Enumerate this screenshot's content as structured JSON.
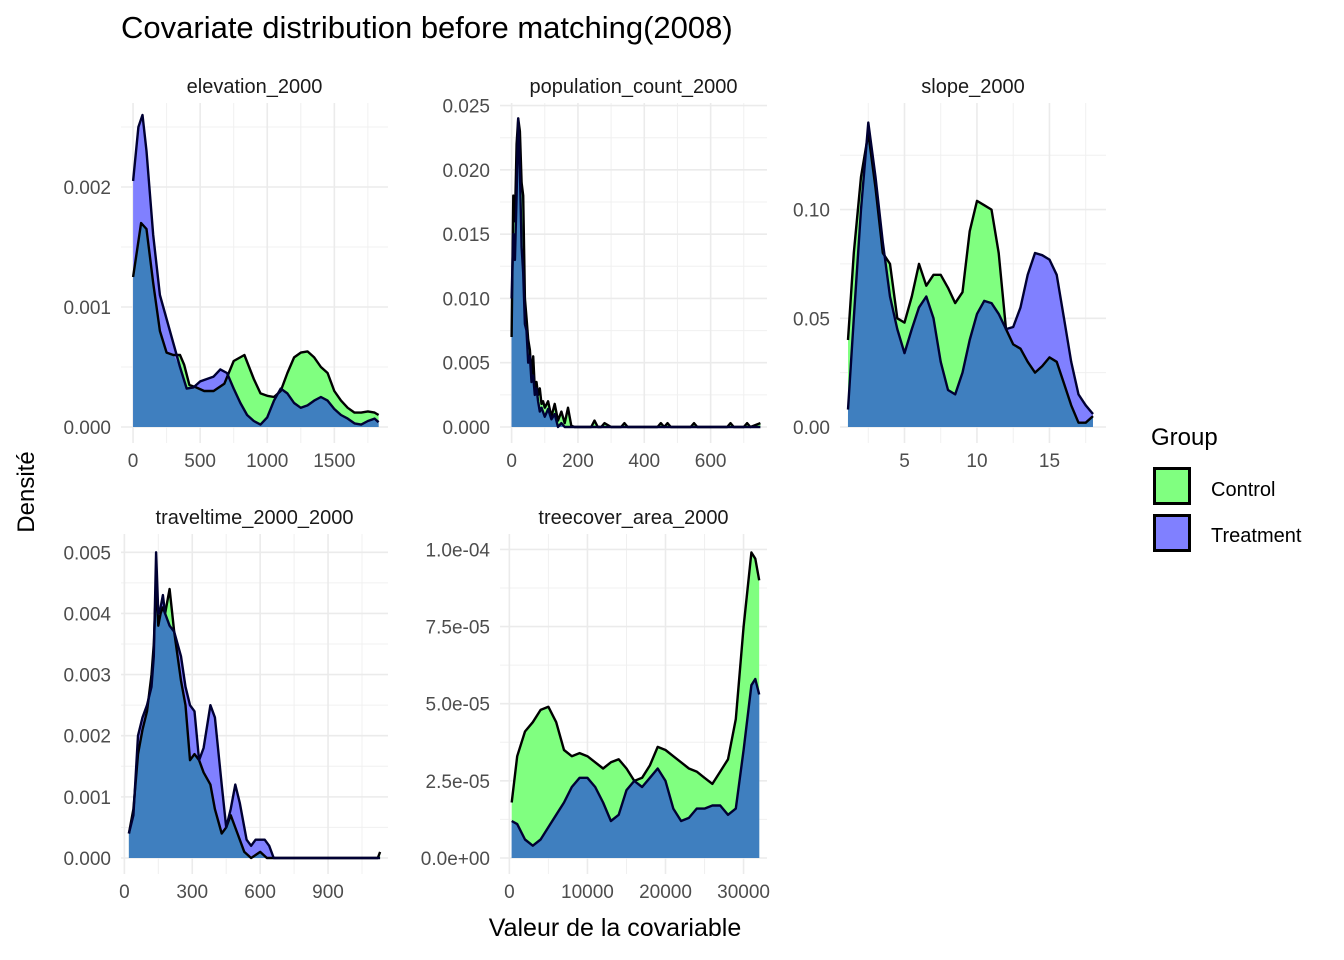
{
  "chart_data": {
    "type": "area",
    "title": "Covariate distribution before matching(2008)",
    "xlabel": "Valeur de la covariable",
    "ylabel": "Densité",
    "legend": {
      "title": "Group",
      "position": "right",
      "entries": [
        {
          "name": "Control",
          "color": "#80ff80"
        },
        {
          "name": "Treatment",
          "color": "#8080ff"
        }
      ]
    },
    "overlap_color": "#3f7fbf",
    "grid": true,
    "panels": [
      {
        "name": "elevation_2000",
        "xlim": [
          -90,
          1900
        ],
        "ylim": [
          0,
          0.0027
        ],
        "xticks": [
          0,
          500,
          1000,
          1500
        ],
        "xtick_labels": [
          "0",
          "500",
          "1000",
          "1500"
        ],
        "yticks": [
          0,
          0.001,
          0.002
        ],
        "ytick_labels": [
          "0.000",
          "0.001",
          "0.002"
        ],
        "series": [
          {
            "name": "Control",
            "x": [
              0,
              60,
              100,
              150,
              200,
              250,
              300,
              350,
              380,
              420,
              470,
              530,
              600,
              680,
              750,
              830,
              900,
              950,
              1000,
              1050,
              1100,
              1150,
              1200,
              1250,
              1300,
              1350,
              1400,
              1450,
              1500,
              1550,
              1600,
              1650,
              1700,
              1750,
              1800,
              1830
            ],
            "y": [
              0.00125,
              0.0017,
              0.00165,
              0.0012,
              0.0008,
              0.00062,
              0.0006,
              0.0006,
              0.00052,
              0.00035,
              0.00033,
              0.0003,
              0.0003,
              0.00036,
              0.00055,
              0.0006,
              0.0004,
              0.00028,
              0.00026,
              0.00025,
              0.0003,
              0.00045,
              0.00058,
              0.00062,
              0.00063,
              0.00058,
              0.0005,
              0.00045,
              0.0003,
              0.00022,
              0.00016,
              0.00012,
              0.00012,
              0.00013,
              0.00012,
              0.0001
            ]
          },
          {
            "name": "Treatment",
            "x": [
              0,
              40,
              70,
              100,
              150,
              200,
              250,
              300,
              350,
              400,
              450,
              500,
              550,
              600,
              650,
              700,
              750,
              800,
              850,
              900,
              950,
              1000,
              1050,
              1100,
              1150,
              1200,
              1250,
              1300,
              1350,
              1400,
              1450,
              1500,
              1550,
              1600,
              1650,
              1700,
              1750,
              1800,
              1830
            ],
            "y": [
              0.00205,
              0.0025,
              0.0026,
              0.0023,
              0.0016,
              0.0011,
              0.0009,
              0.0007,
              0.0005,
              0.00032,
              0.00033,
              0.00038,
              0.0004,
              0.00042,
              0.00048,
              0.00045,
              0.00032,
              0.0002,
              0.0001,
              5e-05,
              2e-05,
              8e-05,
              0.00022,
              0.00032,
              0.00028,
              0.0002,
              0.00016,
              0.00018,
              0.00022,
              0.00025,
              0.00022,
              0.00015,
              0.0001,
              7e-05,
              3e-05,
              2e-05,
              5e-05,
              7e-05,
              4e-05
            ]
          }
        ]
      },
      {
        "name": "population_count_2000",
        "xlim": [
          -35,
          770
        ],
        "ylim": [
          0,
          0.0252
        ],
        "xticks": [
          0,
          200,
          400,
          600
        ],
        "xtick_labels": [
          "0",
          "200",
          "400",
          "600"
        ],
        "yticks": [
          0,
          0.005,
          0.01,
          0.015,
          0.02,
          0.025
        ],
        "ytick_labels": [
          "0.000",
          "0.005",
          "0.010",
          "0.015",
          "0.020",
          "0.025"
        ],
        "series": [
          {
            "name": "Control",
            "x": [
              0,
              5,
              10,
              15,
              20,
              25,
              30,
              35,
              40,
              45,
              50,
              55,
              60,
              65,
              70,
              75,
              80,
              85,
              90,
              95,
              100,
              110,
              120,
              130,
              140,
              150,
              160,
              170,
              180,
              190,
              200,
              240,
              250,
              260,
              270,
              280,
              300,
              330,
              340,
              350,
              440,
              450,
              460,
              470,
              480,
              540,
              550,
              560,
              650,
              660,
              670,
              700,
              710,
              720,
              750
            ],
            "y": [
              0.007,
              0.018,
              0.016,
              0.022,
              0.024,
              0.023,
              0.019,
              0.018,
              0.01,
              0.0085,
              0.0068,
              0.006,
              0.004,
              0.0055,
              0.003,
              0.0035,
              0.0025,
              0.003,
              0.0018,
              0.002,
              0.0015,
              0.002,
              0.0008,
              0.0018,
              0.0005,
              0.0012,
              0.0003,
              0.0015,
              0.0001,
              0,
              0,
              0,
              0.0005,
              0,
              0,
              0.0003,
              0,
              0,
              0.0003,
              0,
              0,
              0.0003,
              0,
              0.0003,
              0,
              0,
              0.0003,
              0,
              0,
              0.0003,
              0,
              0,
              0.0003,
              0,
              0.0003
            ]
          },
          {
            "name": "Treatment",
            "x": [
              0,
              5,
              10,
              15,
              20,
              25,
              30,
              35,
              40,
              45,
              50,
              55,
              60,
              65,
              70,
              75,
              80,
              85,
              90,
              100,
              110,
              120,
              130,
              140,
              150,
              160,
              170,
              180,
              200,
              750
            ],
            "y": [
              0.01,
              0.015,
              0.013,
              0.018,
              0.024,
              0.02,
              0.014,
              0.012,
              0.008,
              0.0075,
              0.005,
              0.0055,
              0.0035,
              0.004,
              0.0025,
              0.003,
              0.002,
              0.0012,
              0.0015,
              0.0008,
              0.0014,
              0.0006,
              0.001,
              0,
              0.0003,
              0,
              0,
              0,
              0,
              0
            ]
          }
        ]
      },
      {
        "name": "slope_2000",
        "xlim": [
          0.55,
          18.9
        ],
        "ylim": [
          0,
          0.149
        ],
        "xticks": [
          5,
          10,
          15
        ],
        "xtick_labels": [
          "5",
          "10",
          "15"
        ],
        "yticks": [
          0,
          0.05,
          0.1
        ],
        "ytick_labels": [
          "0.00",
          "0.05",
          "0.10"
        ],
        "series": [
          {
            "name": "Control",
            "x": [
              1.1,
              1.5,
              2.0,
              2.5,
              3.0,
              3.5,
              4.0,
              4.5,
              5.0,
              5.5,
              6.0,
              6.5,
              7.0,
              7.5,
              8.0,
              8.5,
              9.0,
              9.5,
              10.0,
              10.5,
              11.0,
              11.5,
              12.0,
              12.5,
              13.0,
              13.5,
              14.0,
              14.5,
              15.0,
              15.5,
              16.0,
              16.5,
              17.0,
              17.5,
              18.0
            ],
            "y": [
              0.04,
              0.08,
              0.115,
              0.135,
              0.11,
              0.08,
              0.075,
              0.05,
              0.048,
              0.06,
              0.075,
              0.065,
              0.07,
              0.07,
              0.064,
              0.057,
              0.062,
              0.09,
              0.104,
              0.102,
              0.1,
              0.08,
              0.045,
              0.038,
              0.036,
              0.03,
              0.025,
              0.028,
              0.032,
              0.03,
              0.02,
              0.01,
              0.002,
              0.002,
              0.005
            ]
          },
          {
            "name": "Treatment",
            "x": [
              1.1,
              1.5,
              2.0,
              2.5,
              3.0,
              3.5,
              4.0,
              4.5,
              5.0,
              5.5,
              6.0,
              6.5,
              7.0,
              7.5,
              8.0,
              8.5,
              9.0,
              9.5,
              10.0,
              10.5,
              11.0,
              11.5,
              12.0,
              12.5,
              13.0,
              13.5,
              14.0,
              14.5,
              15.0,
              15.5,
              16.0,
              16.5,
              17.0,
              17.5,
              18.0
            ],
            "y": [
              0.008,
              0.05,
              0.1,
              0.14,
              0.115,
              0.085,
              0.06,
              0.045,
              0.034,
              0.045,
              0.055,
              0.06,
              0.05,
              0.03,
              0.017,
              0.015,
              0.025,
              0.04,
              0.052,
              0.058,
              0.057,
              0.052,
              0.045,
              0.046,
              0.055,
              0.07,
              0.08,
              0.079,
              0.077,
              0.07,
              0.05,
              0.03,
              0.015,
              0.01,
              0.006
            ]
          }
        ]
      },
      {
        "name": "traveltime_2000_2000",
        "xlim": [
          -15,
          1165
        ],
        "ylim": [
          0,
          0.0053
        ],
        "xticks": [
          0,
          300,
          600,
          900
        ],
        "xtick_labels": [
          "0",
          "300",
          "600",
          "900"
        ],
        "yticks": [
          0,
          0.001,
          0.002,
          0.003,
          0.004,
          0.005
        ],
        "ytick_labels": [
          "0.000",
          "0.001",
          "0.002",
          "0.003",
          "0.004",
          "0.005"
        ],
        "series": [
          {
            "name": "Control",
            "x": [
              20,
              40,
              60,
              80,
              100,
              120,
              130,
              140,
              150,
              160,
              170,
              180,
              200,
              220,
              250,
              270,
              290,
              310,
              330,
              350,
              380,
              400,
              430,
              450,
              470,
              500,
              530,
              560,
              600,
              630,
              660,
              700,
              1100,
              1120,
              1130
            ],
            "y": [
              0.0004,
              0.0008,
              0.0017,
              0.0021,
              0.0024,
              0.003,
              0.0035,
              0.0045,
              0.0038,
              0.004,
              0.0041,
              0.004,
              0.0044,
              0.0037,
              0.0029,
              0.0025,
              0.0016,
              0.0017,
              0.0016,
              0.0014,
              0.0012,
              0.0008,
              0.0004,
              0.0005,
              0.0007,
              0.0004,
              0.0001,
              0,
              0.0001,
              0,
              0,
              0,
              0,
              0,
              0.0001
            ]
          },
          {
            "name": "Treatment",
            "x": [
              20,
              40,
              60,
              80,
              100,
              120,
              130,
              140,
              150,
              160,
              170,
              180,
              200,
              220,
              250,
              270,
              290,
              310,
              330,
              350,
              380,
              400,
              430,
              450,
              470,
              490,
              510,
              540,
              560,
              580,
              600,
              620,
              640,
              660,
              700,
              1100,
              1130
            ],
            "y": [
              0.0004,
              0.0007,
              0.002,
              0.0023,
              0.0025,
              0.0028,
              0.0033,
              0.005,
              0.004,
              0.0041,
              0.0043,
              0.004,
              0.0038,
              0.0037,
              0.0033,
              0.0028,
              0.0025,
              0.0024,
              0.0016,
              0.0018,
              0.0025,
              0.0023,
              0.0012,
              0.0005,
              0.0008,
              0.0012,
              0.0009,
              0.0003,
              0.0002,
              0.0003,
              0.0003,
              0.0003,
              0.0002,
              0,
              0,
              0,
              0
            ]
          }
        ]
      },
      {
        "name": "treecover_area_2000",
        "xlim": [
          -1200,
          33000
        ],
        "ylim": [
          0,
          0.000105
        ],
        "xticks": [
          0,
          10000,
          20000,
          30000
        ],
        "xtick_labels": [
          "0",
          "10000",
          "20000",
          "30000"
        ],
        "yticks": [
          0,
          2.5e-05,
          5e-05,
          7.5e-05,
          0.0001
        ],
        "ytick_labels": [
          "0.0e+00",
          "2.5e-05",
          "5.0e-05",
          "7.5e-05",
          "1.0e-04"
        ],
        "series": [
          {
            "name": "Control",
            "x": [
              300,
              1000,
              2000,
              3000,
              4000,
              5000,
              6000,
              7000,
              8000,
              9000,
              10000,
              11000,
              12000,
              13000,
              14000,
              15000,
              16000,
              17000,
              18000,
              19000,
              20000,
              21000,
              22000,
              23000,
              24000,
              25000,
              26000,
              27000,
              28000,
              29000,
              30000,
              31000,
              31500,
              32000
            ],
            "y": [
              1.8e-05,
              3.3e-05,
              4.1e-05,
              4.4e-05,
              4.8e-05,
              4.9e-05,
              4.4e-05,
              3.5e-05,
              3.3e-05,
              3.4e-05,
              3.3e-05,
              3.1e-05,
              2.9e-05,
              3.1e-05,
              3.2e-05,
              2.9e-05,
              2.5e-05,
              2.6e-05,
              3e-05,
              3.6e-05,
              3.5e-05,
              3.3e-05,
              3.1e-05,
              2.9e-05,
              2.8e-05,
              2.6e-05,
              2.4e-05,
              2.8e-05,
              3.2e-05,
              4.5e-05,
              7.5e-05,
              9.9e-05,
              9.7e-05,
              9e-05
            ]
          },
          {
            "name": "Treatment",
            "x": [
              300,
              1000,
              2000,
              3000,
              4000,
              5000,
              6000,
              7000,
              8000,
              9000,
              10000,
              11000,
              12000,
              13000,
              14000,
              15000,
              16000,
              17000,
              18000,
              19000,
              20000,
              21000,
              22000,
              23000,
              24000,
              25000,
              26000,
              27000,
              28000,
              29000,
              30000,
              31000,
              31500,
              32000
            ],
            "y": [
              1.2e-05,
              1.1e-05,
              6e-06,
              4e-06,
              6e-06,
              1e-05,
              1.4e-05,
              1.8e-05,
              2.3e-05,
              2.6e-05,
              2.6e-05,
              2.3e-05,
              1.8e-05,
              1.2e-05,
              1.4e-05,
              2.2e-05,
              2.5e-05,
              2.3e-05,
              2.6e-05,
              2.9e-05,
              2.5e-05,
              1.6e-05,
              1.2e-05,
              1.3e-05,
              1.6e-05,
              1.6e-05,
              1.7e-05,
              1.7e-05,
              1.4e-05,
              1.6e-05,
              3.5e-05,
              5.6e-05,
              5.8e-05,
              5.3e-05
            ]
          }
        ]
      }
    ]
  }
}
